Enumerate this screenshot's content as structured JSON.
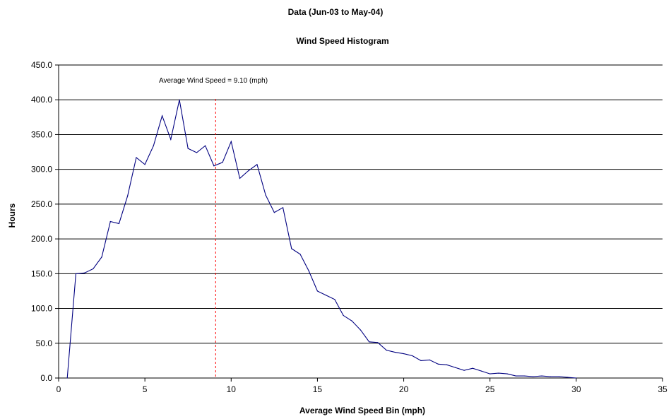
{
  "chart_data": {
    "type": "line",
    "title": "Data (Jun-03 to May-04)",
    "subtitle": "Wind Speed Histogram",
    "xlabel": "Average Wind Speed Bin (mph)",
    "ylabel": "Hours",
    "xlim": [
      0,
      35
    ],
    "ylim": [
      0,
      450
    ],
    "xticks": [
      0,
      5,
      10,
      15,
      20,
      25,
      30,
      35
    ],
    "xtick_labels": [
      "0",
      "5",
      "10",
      "15",
      "20",
      "25",
      "30",
      "35"
    ],
    "yticks": [
      0,
      50,
      100,
      150,
      200,
      250,
      300,
      350,
      400,
      450
    ],
    "ytick_labels": [
      "0.0",
      "50.0",
      "100.0",
      "150.0",
      "200.0",
      "250.0",
      "300.0",
      "350.0",
      "400.0",
      "450.0"
    ],
    "grid": "horizontal",
    "series": [
      {
        "color": "#000080",
        "x": [
          0.5,
          1.0,
          1.5,
          2.0,
          2.5,
          3.0,
          3.5,
          4.0,
          4.5,
          5.0,
          5.5,
          6.0,
          6.5,
          7.0,
          7.5,
          8.0,
          8.5,
          9.0,
          9.5,
          10.0,
          10.5,
          11.0,
          11.5,
          12.0,
          12.5,
          13.0,
          13.5,
          14.0,
          14.5,
          15.0,
          15.5,
          16.0,
          16.5,
          17.0,
          17.5,
          18.0,
          18.5,
          19.0,
          19.5,
          20.0,
          20.5,
          21.0,
          21.5,
          22.0,
          22.5,
          23.0,
          23.5,
          24.0,
          24.5,
          25.0,
          25.5,
          26.0,
          26.5,
          27.0,
          27.5,
          28.0,
          28.5,
          29.0,
          29.5,
          30.0
        ],
        "values": [
          0,
          150,
          151,
          157,
          174,
          225,
          222,
          262,
          317,
          307,
          334,
          377,
          343,
          400,
          330,
          324,
          334,
          305,
          310,
          340,
          287,
          298,
          307,
          263,
          238,
          245,
          186,
          178,
          154,
          125,
          119,
          113,
          90,
          82,
          69,
          52,
          51,
          40,
          37,
          35,
          32,
          25,
          26,
          20,
          19,
          15,
          11,
          14,
          10,
          6,
          7,
          6,
          3,
          3,
          2,
          3,
          2,
          2,
          1,
          0
        ]
      }
    ],
    "reference_line": {
      "x": 9.1,
      "color": "#ff0000",
      "style": "dashed",
      "label": "Average Wind Speed = 9.10 (mph)"
    }
  }
}
